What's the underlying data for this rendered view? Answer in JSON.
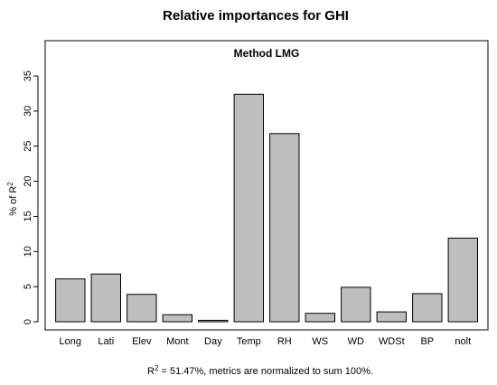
{
  "chart_data": {
    "type": "bar",
    "title": "Relative importances for GHI",
    "subtitle": "Method LMG",
    "ylabel": {
      "prefix": "% of R",
      "sup": "2"
    },
    "xlabel": "",
    "categories": [
      "Long",
      "Lati",
      "Elev",
      "Mont",
      "Day",
      "Temp",
      "RH",
      "WS",
      "WD",
      "WDSt",
      "BP",
      "nolt"
    ],
    "values": [
      6.1,
      6.8,
      3.9,
      1.0,
      0.2,
      32.4,
      26.8,
      1.2,
      4.9,
      1.4,
      4.0,
      11.9
    ],
    "ylim": [
      0,
      40
    ],
    "yticks": [
      0,
      5,
      10,
      15,
      20,
      25,
      30,
      35
    ],
    "grid": false,
    "bar_color": "#bebebe",
    "bar_stroke": "#000000",
    "note": {
      "prefix": "R",
      "sup": "2",
      "text": " = 51.47%, metrics are normalized to sum 100%."
    }
  }
}
